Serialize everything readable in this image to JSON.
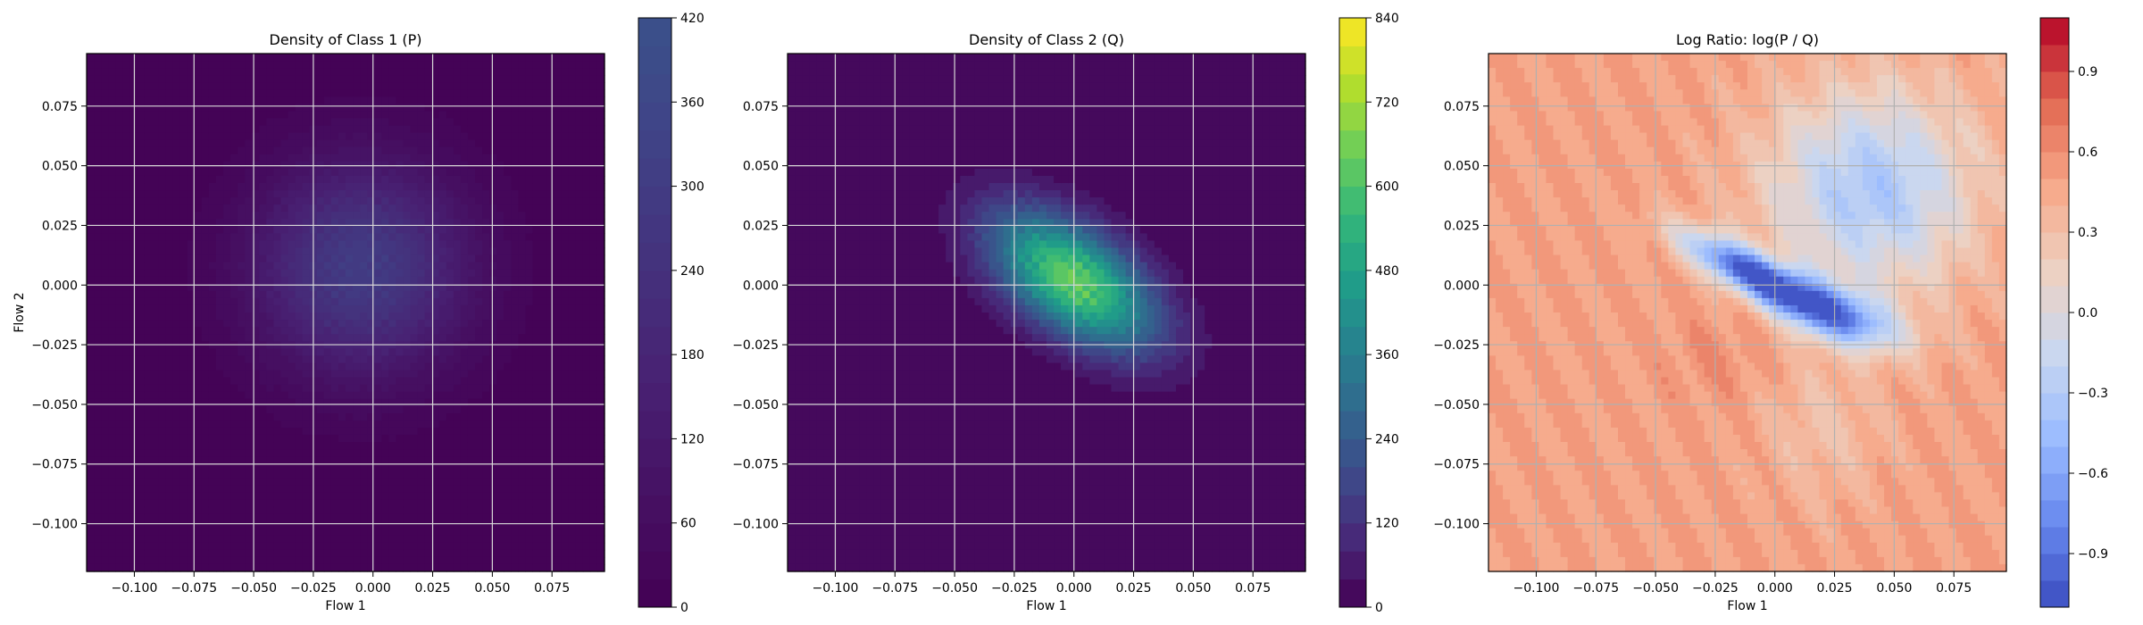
{
  "chart_data": [
    {
      "type": "heatmap",
      "title": "Density of Class 1 (P)",
      "xlabel": "Flow 1",
      "ylabel": "Flow 2",
      "xlim": [
        -0.12,
        0.097
      ],
      "ylim": [
        -0.12,
        0.097
      ],
      "x_ticks": [
        -0.1,
        -0.075,
        -0.05,
        -0.025,
        0.0,
        0.025,
        0.05,
        0.075
      ],
      "y_ticks": [
        0.075,
        0.05,
        0.025,
        0.0,
        -0.025,
        -0.05,
        -0.075,
        -0.1
      ],
      "x_tick_labels": [
        "−0.100",
        "−0.075",
        "−0.050",
        "−0.025",
        "0.000",
        "0.025",
        "0.050",
        "0.075"
      ],
      "y_tick_labels": [
        "0.075",
        "0.050",
        "0.025",
        "0.000",
        "−0.025",
        "−0.050",
        "−0.075",
        "−0.100"
      ],
      "grid": true,
      "colormap": "viridis",
      "colorbar": {
        "min": 0,
        "max": 420,
        "levels": 21,
        "ticks": [
          0,
          60,
          120,
          180,
          240,
          300,
          360,
          420
        ],
        "tick_labels": [
          "0",
          "60",
          "120",
          "180",
          "240",
          "300",
          "360",
          "420"
        ],
        "colors": [
          "#440154",
          "#482374",
          "#404387",
          "#345f8d",
          "#29788e",
          "#21918c"
        ],
        "color_range": [
          0.0,
          0.5
        ]
      },
      "peak": {
        "x": -0.005,
        "y": 0.007,
        "value": 300
      },
      "spread": {
        "sx": 0.031,
        "sy": 0.031,
        "rho": 0.0
      }
    },
    {
      "type": "heatmap",
      "title": "Density of Class 2 (Q)",
      "xlabel": "Flow 1",
      "ylabel": "",
      "xlim": [
        -0.12,
        0.097
      ],
      "ylim": [
        -0.12,
        0.097
      ],
      "x_ticks": [
        -0.1,
        -0.075,
        -0.05,
        -0.025,
        0.0,
        0.025,
        0.05,
        0.075
      ],
      "y_ticks": [
        0.075,
        0.05,
        0.025,
        0.0,
        -0.025,
        -0.05,
        -0.075,
        -0.1
      ],
      "x_tick_labels": [
        "−0.100",
        "−0.075",
        "−0.050",
        "−0.025",
        "0.000",
        "0.025",
        "0.050",
        "0.075"
      ],
      "y_tick_labels": [
        "0.075",
        "0.050",
        "0.025",
        "0.000",
        "−0.025",
        "−0.050",
        "−0.075",
        "−0.100"
      ],
      "grid": true,
      "colormap": "viridis",
      "colorbar": {
        "min": 0,
        "max": 840,
        "levels": 21,
        "ticks": [
          0,
          120,
          240,
          360,
          480,
          600,
          720,
          840
        ],
        "tick_labels": [
          "0",
          "120",
          "240",
          "360",
          "480",
          "600",
          "720",
          "840"
        ],
        "colors": [
          "#440154",
          "#482878",
          "#3e4989",
          "#31688e",
          "#26828e",
          "#1f9e89",
          "#35b779",
          "#6ece58",
          "#b5de2b",
          "#fde725"
        ],
        "color_range": [
          0.0,
          1.0
        ]
      },
      "peak": {
        "x": 0.0,
        "y": 0.002,
        "value": 640
      },
      "spread": {
        "sx": 0.024,
        "sy": 0.02,
        "rho": -0.55
      }
    },
    {
      "type": "heatmap",
      "title": "Log Ratio: log(P / Q)",
      "xlabel": "Flow 1",
      "ylabel": "",
      "xlim": [
        -0.12,
        0.097
      ],
      "ylim": [
        -0.12,
        0.097
      ],
      "x_ticks": [
        -0.1,
        -0.075,
        -0.05,
        -0.025,
        0.0,
        0.025,
        0.05,
        0.075
      ],
      "y_ticks": [
        0.075,
        0.05,
        0.025,
        0.0,
        -0.025,
        -0.05,
        -0.075,
        -0.1
      ],
      "x_tick_labels": [
        "−0.100",
        "−0.075",
        "−0.050",
        "−0.025",
        "0.000",
        "0.025",
        "0.050",
        "0.075"
      ],
      "y_tick_labels": [
        "0.075",
        "0.050",
        "0.025",
        "0.000",
        "−0.025",
        "−0.050",
        "−0.075",
        "−0.100"
      ],
      "grid": true,
      "colormap": "coolwarm",
      "colorbar": {
        "min": -1.1,
        "max": 1.1,
        "levels": 22,
        "ticks": [
          0.9,
          0.6,
          0.3,
          0.0,
          -0.3,
          -0.6,
          -0.9
        ],
        "tick_labels": [
          "0.9",
          "0.6",
          "0.3",
          "0.0",
          "−0.3",
          "−0.6",
          "−0.9"
        ],
        "colors": [
          "#3b4cc0",
          "#6788ee",
          "#9abbff",
          "#c9d7f0",
          "#edd1c2",
          "#f7a889",
          "#e26952",
          "#b40426"
        ],
        "color_range": [
          0.0,
          1.0
        ]
      },
      "background_value": 0.5,
      "features": [
        {
          "x": -0.01,
          "y": 0.005,
          "value": -0.95,
          "sx": 0.022,
          "sy": 0.006,
          "angle": -28
        },
        {
          "x": 0.025,
          "y": -0.012,
          "value": -0.6,
          "sx": 0.02,
          "sy": 0.008,
          "angle": -20
        },
        {
          "x": -0.022,
          "y": -0.03,
          "value": 0.6,
          "sx": 0.016,
          "sy": 0.014,
          "angle": 0
        },
        {
          "x": 0.02,
          "y": -0.06,
          "value": 0.3,
          "sx": 0.018,
          "sy": 0.022,
          "angle": 0
        },
        {
          "x": 0.04,
          "y": 0.04,
          "value": -0.35,
          "sx": 0.03,
          "sy": 0.03,
          "angle": 0
        }
      ]
    }
  ]
}
